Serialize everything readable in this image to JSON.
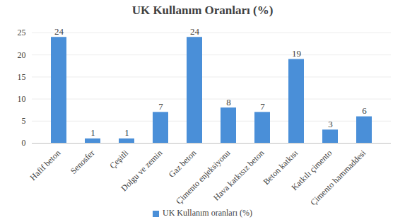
{
  "chart_data": {
    "type": "bar",
    "title": "UK Kullanım Oranları (%)",
    "categories": [
      "Hafif beton",
      "Senosfer",
      "Çeşitli",
      "Dolgu ve zemin",
      "Gaz beton",
      "Çimento enjeksiyonu",
      "Hava katkısız beton",
      "Beton katkısı",
      "Katkılı çimento",
      "Çimento hammaddesi"
    ],
    "series": [
      {
        "name": "UK Kullanım oranları (%)",
        "color": "#4a8fd8",
        "values": [
          24,
          1,
          1,
          7,
          24,
          8,
          7,
          19,
          3,
          6
        ]
      }
    ],
    "ylim": [
      0,
      25
    ],
    "yticks": [
      0,
      5,
      10,
      15,
      20,
      25
    ],
    "grid": true,
    "data_labels": true,
    "legend": "bottom"
  }
}
